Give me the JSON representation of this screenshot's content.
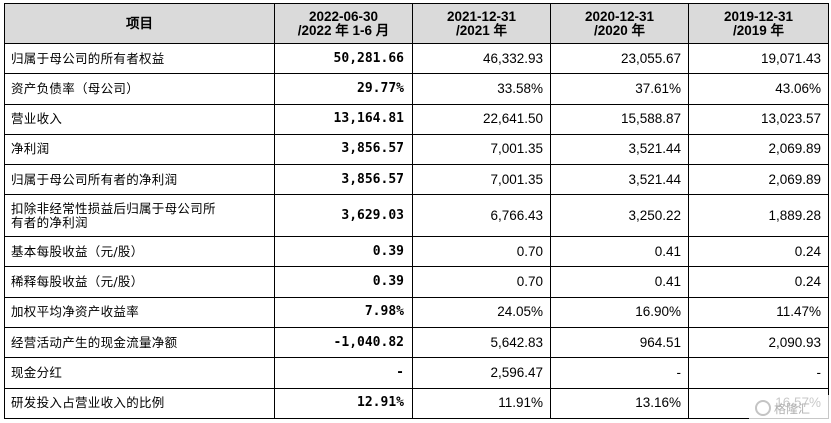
{
  "header": {
    "item": "项目",
    "cols": [
      {
        "line1": "2022-06-30",
        "line2": "/2022 年 1-6 月"
      },
      {
        "line1": "2021-12-31",
        "line2": "/2021 年"
      },
      {
        "line1": "2020-12-31",
        "line2": "/2020 年"
      },
      {
        "line1": "2019-12-31",
        "line2": "/2019 年"
      }
    ]
  },
  "rows": [
    {
      "label": "归属于母公司的所有者权益",
      "v2022": "50,281.66",
      "v2021": "46,332.93",
      "v2020": "23,055.67",
      "v2019": "19,071.43"
    },
    {
      "label": "资产负债率（母公司）",
      "v2022": "29.77%",
      "v2021": "33.58%",
      "v2020": "37.61%",
      "v2019": "43.06%"
    },
    {
      "label": "营业收入",
      "v2022": "13,164.81",
      "v2021": "22,641.50",
      "v2020": "15,588.87",
      "v2019": "13,023.57"
    },
    {
      "label": "净利润",
      "v2022": "3,856.57",
      "v2021": "7,001.35",
      "v2020": "3,521.44",
      "v2019": "2,069.89"
    },
    {
      "label": "归属于母公司所有者的净利润",
      "v2022": "3,856.57",
      "v2021": "7,001.35",
      "v2020": "3,521.44",
      "v2019": "2,069.89"
    },
    {
      "label_line1": "扣除非经常性损益后归属于母公司所",
      "label_line2": "有者的净利润",
      "v2022": "3,629.03",
      "v2021": "6,766.43",
      "v2020": "3,250.22",
      "v2019": "1,889.28"
    },
    {
      "label": "基本每股收益（元/股）",
      "v2022": "0.39",
      "v2021": "0.70",
      "v2020": "0.41",
      "v2019": "0.24"
    },
    {
      "label": "稀释每股收益（元/股）",
      "v2022": "0.39",
      "v2021": "0.70",
      "v2020": "0.41",
      "v2019": "0.24"
    },
    {
      "label": "加权平均净资产收益率",
      "v2022": "7.98%",
      "v2021": "24.05%",
      "v2020": "16.90%",
      "v2019": "11.47%"
    },
    {
      "label": "经营活动产生的现金流量净额",
      "v2022": "-1,040.82",
      "v2021": "5,642.83",
      "v2020": "964.51",
      "v2019": "2,090.93"
    },
    {
      "label": "现金分红",
      "v2022": "-",
      "v2021": "2,596.47",
      "v2020": "-",
      "v2019": "-"
    },
    {
      "label": "研发投入占营业收入的比例",
      "v2022": "12.91%",
      "v2021": "11.91%",
      "v2020": "13.16%",
      "v2019": "16.57%"
    }
  ],
  "watermark": {
    "icon": "watermark-logo-icon",
    "text": "格隆汇"
  }
}
